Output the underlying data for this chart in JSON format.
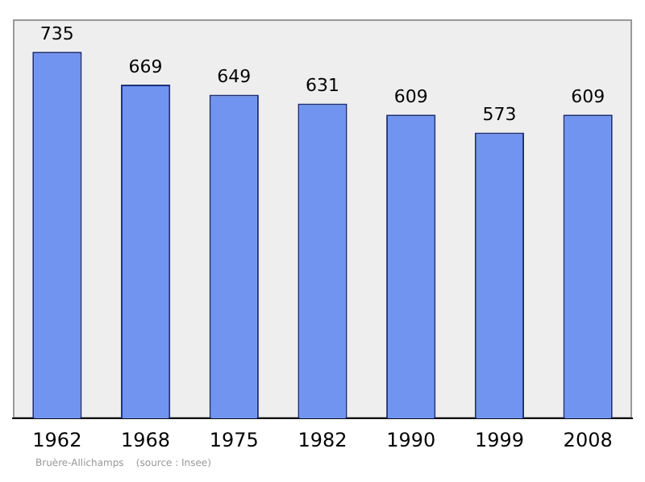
{
  "chart_data": {
    "type": "bar",
    "categories": [
      "1962",
      "1968",
      "1975",
      "1982",
      "1990",
      "1999",
      "2008"
    ],
    "values": [
      735,
      669,
      649,
      631,
      609,
      573,
      609
    ],
    "color": "#7094f0",
    "data_labels": true,
    "grid": false,
    "legend": false,
    "tick_labels": "x",
    "annotations": [
      "Bruère-Allichamps    (source : Insee)"
    ]
  }
}
